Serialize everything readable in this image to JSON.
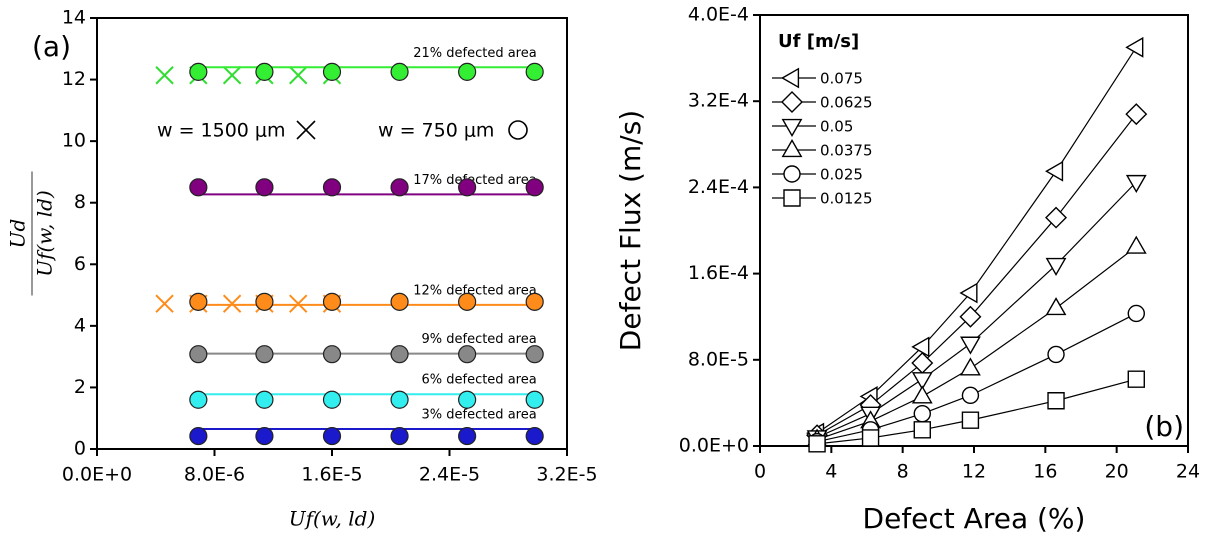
{
  "chart_data": [
    {
      "type": "scatter",
      "panel_label": "(a)",
      "xlabel": "Uf(w, ld)",
      "ylabel_numerator": "Ud",
      "ylabel_denominator": "Uf(w, ld)",
      "xlim": [
        0,
        3.2e-05
      ],
      "xticks": [
        {
          "value": 0,
          "label": "0.0E+0"
        },
        {
          "value": 8e-06,
          "label": "8.0E-6"
        },
        {
          "value": 1.6e-05,
          "label": "1.6E-5"
        },
        {
          "value": 2.4e-05,
          "label": "2.4E-5"
        },
        {
          "value": 3.2e-05,
          "label": "3.2E-5"
        }
      ],
      "ylim": [
        0,
        14
      ],
      "yticks": [
        0,
        2,
        4,
        6,
        8,
        10,
        12,
        14
      ],
      "legend": [
        {
          "label": "w = 1500 μm",
          "marker": "x"
        },
        {
          "label": "w = 750 μm",
          "marker": "circle"
        }
      ],
      "series": [
        {
          "marker": "x",
          "color": "#33dd33",
          "x": [
            4.6e-06,
            6.9e-06,
            9.2e-06,
            1.14e-05,
            1.37e-05,
            1.6e-05
          ],
          "values": [
            12.14,
            12.14,
            12.14,
            12.14,
            12.14,
            12.14
          ]
        },
        {
          "marker": "x",
          "color": "#ff8c1a",
          "x": [
            4.6e-06,
            6.9e-06,
            9.2e-06,
            1.14e-05,
            1.37e-05,
            1.6e-05
          ],
          "values": [
            4.72,
            4.72,
            4.72,
            4.72,
            4.72,
            4.72
          ]
        },
        {
          "marker": "circle",
          "color": "#33ee33",
          "label": "21% defected area",
          "fit": 12.4,
          "x": [
            6.9e-06,
            1.14e-05,
            1.6e-05,
            2.06e-05,
            2.52e-05,
            2.98e-05
          ],
          "values": [
            12.25,
            12.25,
            12.25,
            12.25,
            12.25,
            12.25
          ]
        },
        {
          "marker": "circle",
          "color": "#800080",
          "label": "17% defected area",
          "fit": 8.27,
          "x": [
            6.9e-06,
            1.14e-05,
            1.6e-05,
            2.06e-05,
            2.52e-05,
            2.98e-05
          ],
          "values": [
            8.5,
            8.5,
            8.5,
            8.5,
            8.5,
            8.5
          ]
        },
        {
          "marker": "circle",
          "color": "#ff8c1a",
          "label": "12% defected area",
          "fit": 4.68,
          "x": [
            6.9e-06,
            1.14e-05,
            1.6e-05,
            2.06e-05,
            2.52e-05,
            2.98e-05
          ],
          "values": [
            4.78,
            4.78,
            4.78,
            4.78,
            4.78,
            4.78
          ]
        },
        {
          "marker": "circle",
          "color": "#888888",
          "label": "9% defected area",
          "fit": 3.1,
          "x": [
            6.9e-06,
            1.14e-05,
            1.6e-05,
            2.06e-05,
            2.52e-05,
            2.98e-05
          ],
          "values": [
            3.08,
            3.08,
            3.08,
            3.08,
            3.08,
            3.08
          ]
        },
        {
          "marker": "circle",
          "color": "#33eeee",
          "label": "6% defected area",
          "fit": 1.78,
          "x": [
            6.9e-06,
            1.14e-05,
            1.6e-05,
            2.06e-05,
            2.52e-05,
            2.98e-05
          ],
          "values": [
            1.6,
            1.6,
            1.6,
            1.6,
            1.6,
            1.6
          ]
        },
        {
          "marker": "circle",
          "color": "#1a1acc",
          "label": "3% defected area",
          "fit": 0.65,
          "x": [
            6.9e-06,
            1.14e-05,
            1.6e-05,
            2.06e-05,
            2.52e-05,
            2.98e-05
          ],
          "values": [
            0.42,
            0.42,
            0.42,
            0.42,
            0.42,
            0.42
          ]
        }
      ]
    },
    {
      "type": "line",
      "panel_label": "(b)",
      "xlabel": "Defect Area (%)",
      "ylabel": "Defect Flux (m/s)",
      "legend_title": "Uf [m/s]",
      "xlim": [
        0,
        24
      ],
      "xticks": [
        0,
        4,
        8,
        12,
        16,
        20,
        24
      ],
      "ylim": [
        0,
        0.0004
      ],
      "yticks": [
        {
          "value": 0,
          "label": "0.0E+0"
        },
        {
          "value": 8e-05,
          "label": "8.0E-5"
        },
        {
          "value": 0.00016,
          "label": "1.6E-4"
        },
        {
          "value": 0.00024,
          "label": "2.4E-4"
        },
        {
          "value": 0.00032,
          "label": "3.2E-4"
        },
        {
          "value": 0.0004,
          "label": "4.0E-4"
        }
      ],
      "x": [
        3.2,
        6.2,
        9.1,
        11.8,
        16.6,
        21.1
      ],
      "series": [
        {
          "name": "0.075",
          "marker": "triangle-left",
          "color": "#000000",
          "values": [
            1.2e-05,
            4.6e-05,
            9.2e-05,
            0.000142,
            0.000255,
            0.00037
          ]
        },
        {
          "name": "0.0625",
          "marker": "diamond",
          "color": "#000000",
          "values": [
            1e-05,
            3.8e-05,
            7.7e-05,
            0.00012,
            0.000212,
            0.000308
          ]
        },
        {
          "name": "0.05",
          "marker": "triangle-down",
          "color": "#000000",
          "values": [
            8e-06,
            3e-05,
            6.2e-05,
            9.5e-05,
            0.000168,
            0.000245
          ]
        },
        {
          "name": "0.0375",
          "marker": "triangle-up",
          "color": "#000000",
          "values": [
            6e-06,
            2.3e-05,
            4.6e-05,
            7.2e-05,
            0.000128,
            0.000185
          ]
        },
        {
          "name": "0.025",
          "marker": "circle",
          "color": "#000000",
          "values": [
            4e-06,
            1.5e-05,
            3e-05,
            4.7e-05,
            8.5e-05,
            0.000123
          ]
        },
        {
          "name": "0.0125",
          "marker": "square",
          "color": "#000000",
          "values": [
            2e-06,
            7.5e-06,
            1.5e-05,
            2.4e-05,
            4.2e-05,
            6.2e-05
          ]
        }
      ]
    }
  ]
}
